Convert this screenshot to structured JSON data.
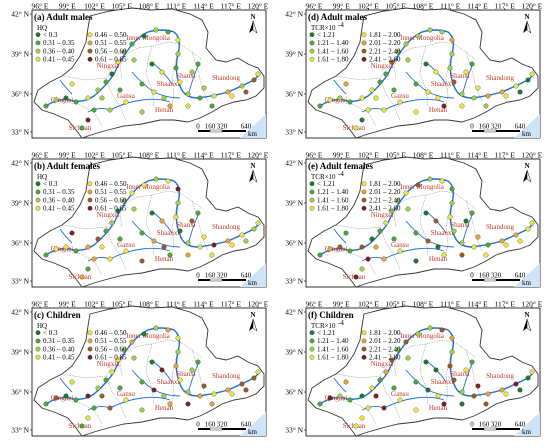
{
  "x_ticks": [
    "96° E",
    "99° E",
    "102° E",
    "105° E",
    "108° E",
    "111° E",
    "114° E",
    "117° E",
    "120° E"
  ],
  "y_ticks": [
    "42° N",
    "39° N",
    "36° N",
    "33° N"
  ],
  "provinces": [
    "Inner Mongolia",
    "Ningxia",
    "Shaanxi",
    "Shanxi",
    "Gansu",
    "Qinghai",
    "Sichuan",
    "Henan",
    "Shandong"
  ],
  "scale": {
    "labels": [
      "0",
      "160",
      "320",
      "640"
    ],
    "unit": "km"
  },
  "north": "N",
  "colors": {
    "ocean": "#cfe3f7",
    "basin_fill": "#ffffff",
    "river": "#1e6fd9",
    "dot_dark_green": "#1b7a2e",
    "dot_green": "#4aa83a",
    "dot_light_green": "#9fd04a",
    "dot_yellow_green": "#d8e84a",
    "dot_yellow": "#f2e43a",
    "dot_orange": "#e8a23a",
    "dot_brown": "#9c5a2a",
    "dot_dark_red": "#7a1f24"
  },
  "hq_legend": {
    "title": "HQ",
    "items": [
      "< 0.3",
      "0.31 – 0.35",
      "0.36 – 0.40",
      "0.41 – 0.45",
      "0.46 – 0.50",
      "0.51 – 0.55",
      "0.56 – 0.60",
      "0.61 – 0.65"
    ]
  },
  "tcr_legend": {
    "title": "TCR×10",
    "title_exp": "-4",
    "items": [
      "< 1.21",
      "1.21 – 1.40",
      "1.41 – 1.60",
      "1.61 – 1.80",
      "1.81 – 2.00",
      "2.01 – 2.20",
      "2.21 – 2.40",
      "2.41 – 2.60"
    ]
  },
  "panels": [
    {
      "title": "(a) Adult males",
      "legend": "hq"
    },
    {
      "title": "(d) Adult males",
      "legend": "tcr"
    },
    {
      "title": "(b) Adult females",
      "legend": "hq"
    },
    {
      "title": "(e) Adult females",
      "legend": "tcr"
    },
    {
      "title": "(c) Children",
      "legend": "hq"
    },
    {
      "title": "(f) Children",
      "legend": "tcr"
    }
  ]
}
